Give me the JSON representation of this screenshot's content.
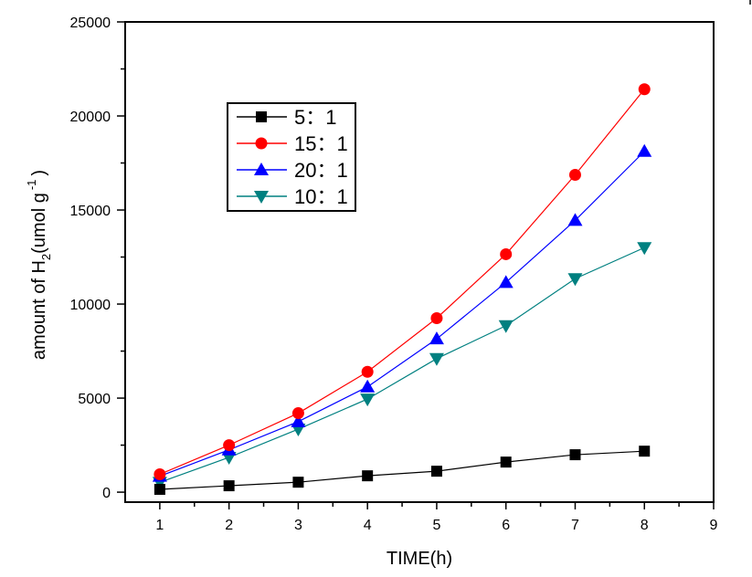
{
  "chart_data": {
    "type": "line",
    "title": "",
    "xlabel": "TIME(h)",
    "ylabel": {
      "prefix": "amount of H",
      "subscript": "2",
      "middle": "(umol g",
      "superscript": "-1",
      "suffix": ")"
    },
    "xlim": [
      0.5,
      9
    ],
    "ylim": [
      -530,
      25000
    ],
    "xticks": [
      1,
      2,
      3,
      4,
      5,
      6,
      7,
      8,
      9
    ],
    "xtick_labels": [
      "1",
      "2",
      "3",
      "4",
      "5",
      "6",
      "7",
      "8",
      "9"
    ],
    "yticks": [
      0,
      5000,
      10000,
      15000,
      20000,
      25000
    ],
    "ytick_labels": [
      "0",
      "5000",
      "10000",
      "15000",
      "20000",
      "25000"
    ],
    "yminor_ticks": [
      2500,
      7500,
      12500,
      17500,
      22500
    ],
    "xminor_ticks": [
      1.5,
      2.5,
      3.5,
      4.5,
      5.5,
      6.5,
      7.5,
      8.5
    ],
    "grid": false,
    "legend_position": "upper-left",
    "x": [
      1,
      2,
      3,
      4,
      5,
      6,
      7,
      8
    ],
    "series": [
      {
        "name": "5：1",
        "color": "#000000",
        "marker": "square",
        "values": [
          150,
          340,
          530,
          870,
          1115,
          1600,
          1990,
          2180
        ]
      },
      {
        "name": "15：1",
        "color": "#ff0000",
        "marker": "circle",
        "values": [
          950,
          2500,
          4200,
          6400,
          9250,
          12650,
          16870,
          21420
        ]
      },
      {
        "name": "20：1",
        "color": "#0000ff",
        "marker": "triangle-up",
        "values": [
          850,
          2250,
          3750,
          5600,
          8150,
          11150,
          14450,
          18120
        ]
      },
      {
        "name": "10：1",
        "color": "#008080",
        "marker": "triangle-down",
        "values": [
          520,
          1850,
          3350,
          4950,
          7100,
          8850,
          11350,
          13000
        ]
      }
    ]
  }
}
